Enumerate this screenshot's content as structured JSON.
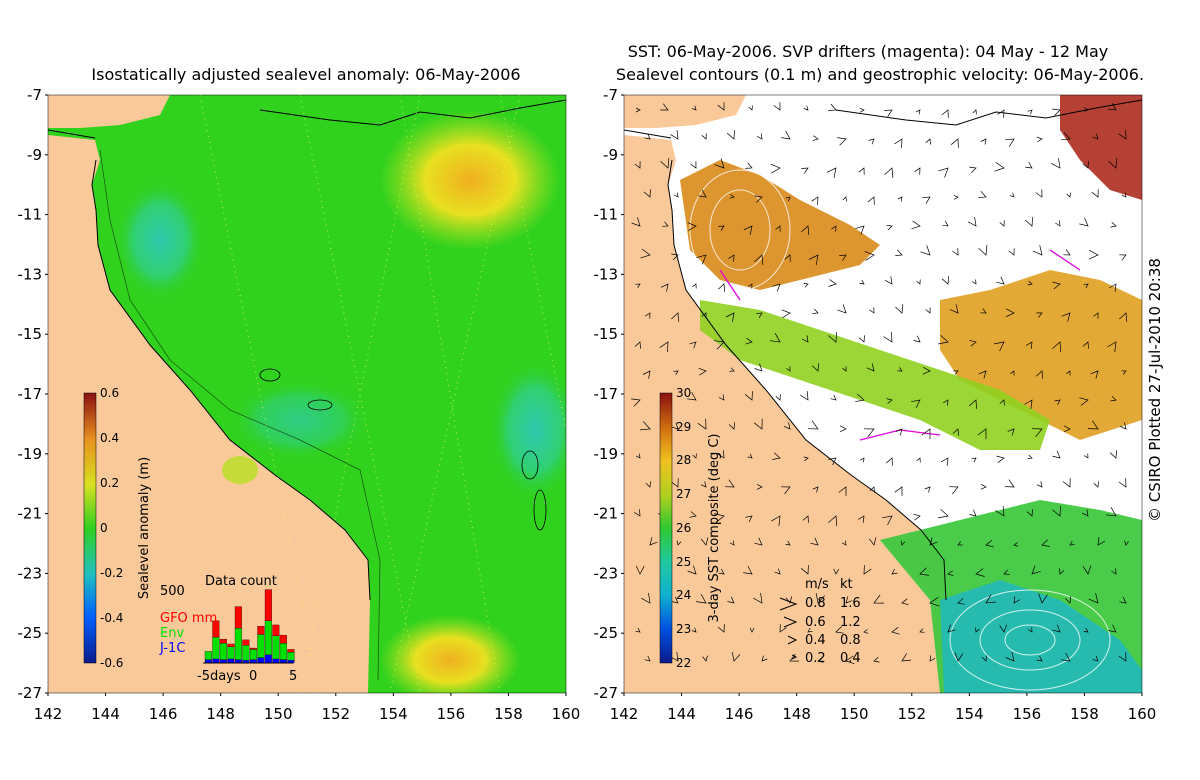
{
  "left_panel": {
    "title": "Isostatically adjusted sealevel anomaly: 06-May-2006",
    "colorbar": {
      "label": "Sealevel anomaly (m)",
      "ticks": [
        "0.6",
        "0.4",
        "0.2",
        "0",
        "-0.2",
        "-0.4",
        "-0.6"
      ],
      "range": [
        -0.6,
        0.6
      ]
    },
    "data_count": {
      "title": "Data count",
      "ymax_label": "500",
      "legend": [
        {
          "text": "GFO mm",
          "color": "#ff0000"
        },
        {
          "text": "Env",
          "color": "#00e000"
        },
        {
          "text": "J-1C",
          "color": "#0000ff"
        }
      ],
      "xlabels": [
        "-5days",
        "0",
        "5"
      ],
      "bars": [
        {
          "gfo": 0,
          "env": 60,
          "j1": 25
        },
        {
          "gfo": 120,
          "env": 160,
          "j1": 30
        },
        {
          "gfo": 30,
          "env": 120,
          "j1": 25
        },
        {
          "gfo": 20,
          "env": 90,
          "j1": 30
        },
        {
          "gfo": 160,
          "env": 230,
          "j1": 25
        },
        {
          "gfo": 40,
          "env": 110,
          "j1": 20
        },
        {
          "gfo": 10,
          "env": 75,
          "j1": 25
        },
        {
          "gfo": 60,
          "env": 170,
          "j1": 40
        },
        {
          "gfo": 230,
          "env": 250,
          "j1": 60
        },
        {
          "gfo": 80,
          "env": 170,
          "j1": 30
        },
        {
          "gfo": 60,
          "env": 120,
          "j1": 25
        },
        {
          "gfo": 20,
          "env": 60,
          "j1": 20
        }
      ]
    }
  },
  "right_panel": {
    "title_line1": "SST: 06-May-2006. SVP drifters (magenta): 04 May - 12 May",
    "title_line2": "Sealevel contours (0.1 m) and geostrophic velocity: 06-May-2006.",
    "colorbar": {
      "label": "3-day SST composite (deg C)",
      "ticks": [
        "30",
        "29",
        "28",
        "27",
        "26",
        "25",
        "24",
        "23",
        "22"
      ],
      "range": [
        22,
        30
      ]
    },
    "velocity_legend": {
      "header_ms": "m/s",
      "header_kt": "kt",
      "rows": [
        {
          "ms": "0.8",
          "kt": "1.6"
        },
        {
          "ms": "0.6",
          "kt": "1.2"
        },
        {
          "ms": "0.4",
          "kt": "0.8"
        },
        {
          "ms": "0.2",
          "kt": "0.4"
        }
      ]
    },
    "credit": "© CSIRO Plotted 27-Jul-2010 20:38"
  },
  "axes": {
    "x_ticks": [
      "142",
      "144",
      "146",
      "148",
      "150",
      "152",
      "154",
      "156",
      "158",
      "160"
    ],
    "y_ticks": [
      "-7",
      "-9",
      "-11",
      "-13",
      "-15",
      "-17",
      "-19",
      "-21",
      "-23",
      "-25",
      "-27"
    ],
    "lon_range": [
      142,
      160
    ],
    "lat_range": [
      -27,
      -7
    ]
  },
  "colors": {
    "land": "#f9c99a",
    "ocean_base": "#31d21e",
    "contour": "#000000",
    "drifter": "#e000e0"
  }
}
